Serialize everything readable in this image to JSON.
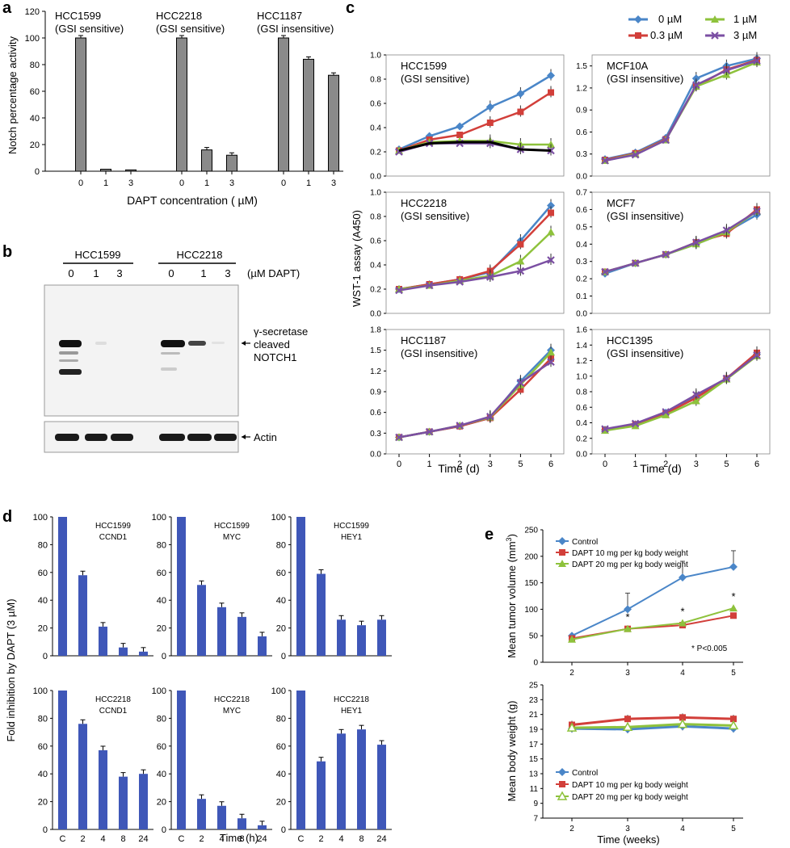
{
  "panel_labels": {
    "a": "a",
    "b": "b",
    "c": "c",
    "d": "d",
    "e": "e"
  },
  "chart_data": [
    {
      "id": "a",
      "type": "bar",
      "ylabel": "Notch percentage activity",
      "xlabel": "DAPT concentration ( µM)",
      "ylim": [
        0,
        120
      ],
      "yticks": [
        "0",
        "20",
        "40",
        "60",
        "80",
        "100",
        "120"
      ],
      "groups": [
        {
          "title": "HCC1599",
          "subtitle": "(GSI sensitive)",
          "categories": [
            "0",
            "1",
            "3"
          ],
          "values": [
            100,
            1.5,
            1
          ]
        },
        {
          "title": "HCC2218",
          "subtitle": "(GSI sensitive)",
          "categories": [
            "0",
            "1",
            "3"
          ],
          "values": [
            100,
            16,
            12
          ]
        },
        {
          "title": "HCC1187",
          "subtitle": "(GSI insensitive)",
          "categories": [
            "0",
            "1",
            "3"
          ],
          "values": [
            100,
            84,
            72
          ]
        }
      ]
    },
    {
      "id": "c",
      "type": "line",
      "ylabel": "WST-1 assay (A450)",
      "xlabel": "Time (d)",
      "x": [
        "0",
        "1",
        "2",
        "3",
        "5",
        "6"
      ],
      "legend": [
        {
          "name": "0 µM",
          "color": "#4a86c8",
          "marker": "diamond"
        },
        {
          "name": "1 µM",
          "color": "#8ec23c",
          "marker": "triangle"
        },
        {
          "name": "0.3 µM",
          "color": "#d23f3a",
          "marker": "square"
        },
        {
          "name": "3 µM",
          "color": "#7b4fa3",
          "marker": "x"
        }
      ],
      "panels": [
        {
          "title": "HCC1599",
          "subtitle": "(GSI sensitive)",
          "yticks": [
            "0.0",
            "0.2",
            "0.4",
            "0.6",
            "0.8",
            "1.0"
          ],
          "ymax": 1.0,
          "series": [
            {
              "name": "0 µM",
              "values": [
                0.22,
                0.33,
                0.41,
                0.57,
                0.68,
                0.83
              ]
            },
            {
              "name": "0.3 µM",
              "values": [
                0.21,
                0.3,
                0.34,
                0.44,
                0.53,
                0.69
              ]
            },
            {
              "name": "1 µM",
              "values": [
                0.21,
                0.28,
                0.29,
                0.29,
                0.26,
                0.26
              ]
            },
            {
              "name": "3 µM",
              "values": [
                0.2,
                0.27,
                0.27,
                0.27,
                0.22,
                0.21
              ]
            },
            {
              "name": "black",
              "values": [
                0.21,
                0.27,
                0.28,
                0.28,
                0.22,
                0.21
              ]
            }
          ]
        },
        {
          "title": "MCF10A",
          "subtitle": "(GSI insensitive)",
          "yticks": [
            "0.0",
            "0.3",
            "0.6",
            "0.9",
            "1.2",
            "1.5"
          ],
          "ymax": 1.65,
          "series": [
            {
              "name": "0 µM",
              "values": [
                0.23,
                0.32,
                0.52,
                1.33,
                1.5,
                1.6
              ]
            },
            {
              "name": "0.3 µM",
              "values": [
                0.22,
                0.31,
                0.5,
                1.22,
                1.45,
                1.58
              ]
            },
            {
              "name": "1 µM",
              "values": [
                0.21,
                0.3,
                0.49,
                1.22,
                1.38,
                1.55
              ]
            },
            {
              "name": "3 µM",
              "values": [
                0.21,
                0.29,
                0.49,
                1.24,
                1.44,
                1.57
              ]
            }
          ]
        },
        {
          "title": "HCC2218",
          "subtitle": "(GSI sensitive)",
          "yticks": [
            "0.0",
            "0.2",
            "0.4",
            "0.6",
            "0.8",
            "1.0"
          ],
          "ymax": 1.0,
          "series": [
            {
              "name": "0 µM",
              "values": [
                0.2,
                0.24,
                0.28,
                0.34,
                0.6,
                0.89
              ]
            },
            {
              "name": "0.3 µM",
              "values": [
                0.2,
                0.24,
                0.28,
                0.35,
                0.57,
                0.83
              ]
            },
            {
              "name": "1 µM",
              "values": [
                0.2,
                0.23,
                0.27,
                0.31,
                0.43,
                0.67
              ]
            },
            {
              "name": "3 µM",
              "values": [
                0.19,
                0.23,
                0.26,
                0.3,
                0.35,
                0.44
              ]
            }
          ]
        },
        {
          "title": "MCF7",
          "subtitle": "(GSI insensitive)",
          "yticks": [
            "0.0",
            "0.1",
            "0.2",
            "0.3",
            "0.4",
            "0.5",
            "0.6",
            "0.7"
          ],
          "ymax": 0.7,
          "series": [
            {
              "name": "0 µM",
              "values": [
                0.23,
                0.29,
                0.34,
                0.4,
                0.47,
                0.57
              ]
            },
            {
              "name": "0.3 µM",
              "values": [
                0.24,
                0.29,
                0.34,
                0.41,
                0.46,
                0.6
              ]
            },
            {
              "name": "1 µM",
              "values": [
                0.24,
                0.29,
                0.34,
                0.4,
                0.47,
                0.59
              ]
            },
            {
              "name": "3 µM",
              "values": [
                0.24,
                0.29,
                0.34,
                0.41,
                0.48,
                0.59
              ]
            }
          ]
        },
        {
          "title": "HCC1187",
          "subtitle": "(GSI insensitive)",
          "yticks": [
            "0.0",
            "0.3",
            "0.6",
            "0.9",
            "1.2",
            "1.5",
            "1.8"
          ],
          "ymax": 1.8,
          "series": [
            {
              "name": "0 µM",
              "values": [
                0.24,
                0.32,
                0.4,
                0.52,
                1.05,
                1.5
              ]
            },
            {
              "name": "0.3 µM",
              "values": [
                0.24,
                0.32,
                0.4,
                0.52,
                0.93,
                1.38
              ]
            },
            {
              "name": "1 µM",
              "values": [
                0.24,
                0.32,
                0.41,
                0.53,
                1.0,
                1.47
              ]
            },
            {
              "name": "3 µM",
              "values": [
                0.24,
                0.32,
                0.41,
                0.54,
                1.03,
                1.33
              ]
            }
          ]
        },
        {
          "title": "HCC1395",
          "subtitle": "(GSI insensitive)",
          "yticks": [
            "0.0",
            "0.2",
            "0.4",
            "0.6",
            "0.8",
            "1.0",
            "1.2",
            "1.4",
            "1.6"
          ],
          "ymax": 1.6,
          "series": [
            {
              "name": "0 µM",
              "values": [
                0.31,
                0.38,
                0.53,
                0.74,
                0.97,
                1.28
              ]
            },
            {
              "name": "0.3 µM",
              "values": [
                0.31,
                0.38,
                0.52,
                0.72,
                0.97,
                1.3
              ]
            },
            {
              "name": "1 µM",
              "values": [
                0.3,
                0.36,
                0.5,
                0.68,
                0.96,
                1.26
              ]
            },
            {
              "name": "3 µM",
              "values": [
                0.32,
                0.39,
                0.54,
                0.76,
                0.97,
                1.27
              ]
            }
          ]
        }
      ]
    },
    {
      "id": "d",
      "type": "bar",
      "ylabel": "Fold inhibition by DAPT (3 µM)",
      "xlabel": "Time (h)",
      "categories": [
        "C",
        "2",
        "4",
        "8",
        "24"
      ],
      "yticks": [
        "0",
        "20",
        "40",
        "60",
        "80",
        "100"
      ],
      "ymax": 100,
      "color": "#3f57b8",
      "panels": [
        {
          "line1": "HCC1599",
          "line2": "CCND1",
          "values": [
            100,
            58,
            21,
            6,
            3
          ]
        },
        {
          "line1": "HCC1599",
          "line2": "MYC",
          "values": [
            100,
            51,
            35,
            28,
            14
          ]
        },
        {
          "line1": "HCC1599",
          "line2": "HEY1",
          "values": [
            100,
            59,
            26,
            22,
            26
          ]
        },
        {
          "line1": "HCC2218",
          "line2": "CCND1",
          "values": [
            100,
            76,
            57,
            38,
            40
          ]
        },
        {
          "line1": "HCC2218",
          "line2": "MYC",
          "values": [
            100,
            22,
            17,
            8,
            3
          ]
        },
        {
          "line1": "HCC2218",
          "line2": "HEY1",
          "values": [
            100,
            49,
            69,
            72,
            61
          ]
        }
      ]
    },
    {
      "id": "e",
      "type": "line",
      "xlabel": "Time (weeks)",
      "x": [
        "2",
        "3",
        "4",
        "5"
      ],
      "legend": [
        "Control",
        "DAPT 10 mg per kg body weight",
        "DAPT 20 mg per kg body weight"
      ],
      "colors": [
        "#4a86c8",
        "#d23f3a",
        "#8ec23c"
      ],
      "top": {
        "ylabel": "Mean tumor volume (mm",
        "ylabel_sup": "3",
        "ylabel_end": ")",
        "yticks": [
          "0",
          "50",
          "100",
          "150",
          "200",
          "250"
        ],
        "ymax": 250,
        "series": [
          {
            "name": "Control",
            "values": [
              50,
              100,
              160,
              180
            ]
          },
          {
            "name": "DAPT 10 mg per kg body weight",
            "values": [
              45,
              63,
              70,
              88
            ]
          },
          {
            "name": "DAPT 20 mg per kg body weight",
            "values": [
              43,
              63,
              74,
              102
            ]
          }
        ],
        "significance": "*",
        "pvalue": "* P<0.005"
      },
      "bottom": {
        "ylabel": "Mean body weight (g)",
        "yticks": [
          "7",
          "9",
          "11",
          "13",
          "15",
          "17",
          "19",
          "21",
          "23",
          "25"
        ],
        "ymin": 7,
        "ymax": 25,
        "series": [
          {
            "name": "Control",
            "values": [
              19.1,
              19.0,
              19.4,
              19.1
            ]
          },
          {
            "name": "DAPT 10 mg per kg body weight",
            "values": [
              19.6,
              20.4,
              20.6,
              20.4
            ]
          },
          {
            "name": "DAPT 20 mg per kg body weight",
            "values": [
              19.2,
              19.3,
              19.7,
              19.5
            ]
          }
        ]
      }
    }
  ],
  "blot": {
    "groups": [
      "HCC1599",
      "HCC2218"
    ],
    "lanes": [
      "0",
      "1",
      "3",
      "0",
      "1",
      "3"
    ],
    "unit": "(µM DAPT)",
    "band_label_1": "γ-secretase",
    "band_label_2": "cleaved",
    "band_label_3": "NOTCH1",
    "actin_label": "Actin"
  }
}
